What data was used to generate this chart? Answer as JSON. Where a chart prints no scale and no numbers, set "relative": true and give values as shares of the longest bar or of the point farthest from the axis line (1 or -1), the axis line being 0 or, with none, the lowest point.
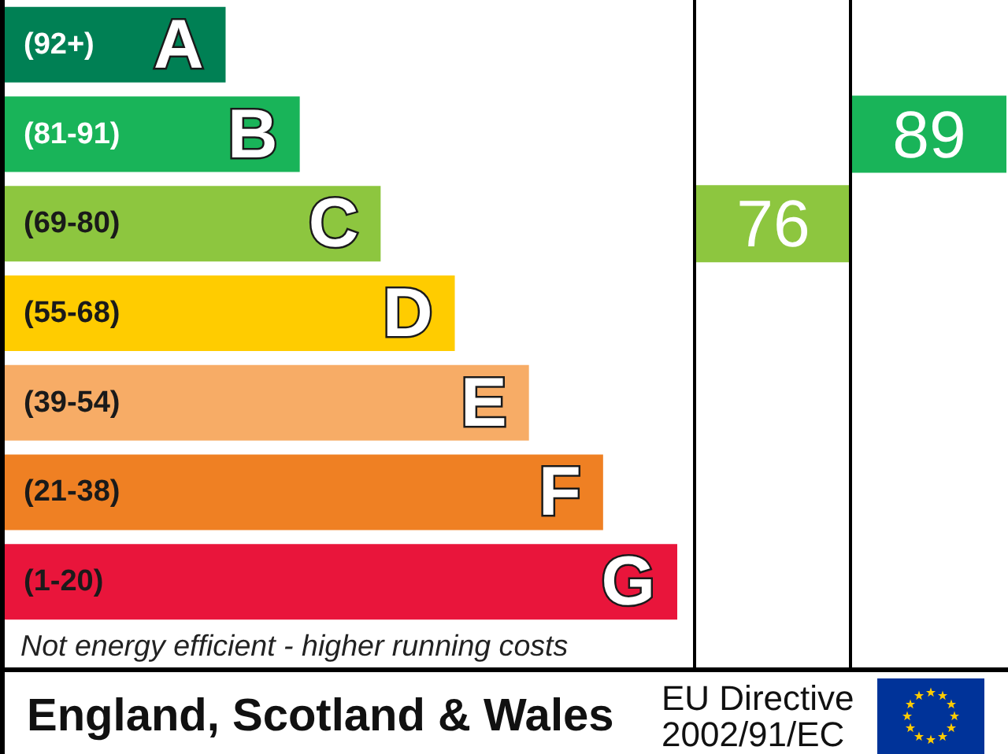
{
  "chart_data": {
    "type": "bar",
    "orientation": "horizontal",
    "relative": true,
    "categories": [
      "A",
      "B",
      "C",
      "D",
      "E",
      "F",
      "G"
    ],
    "values": [
      0.33,
      0.44,
      0.56,
      0.67,
      0.78,
      0.89,
      1
    ],
    "colors": [
      "#008054",
      "#19b459",
      "#8dc63f",
      "#ffcc00",
      "#f7ac66",
      "#ef8023",
      "#e9153b"
    ],
    "annotations": [
      "(92+)",
      "(81-91)",
      "(69-80)",
      "(55-68)",
      "(39-54)",
      "(21-38)",
      "(1-20)",
      "76",
      "89",
      "Not energy efficient - higher running costs",
      "England, Scotland & Wales",
      "EU Directive 2002/91/EC"
    ]
  }
}
